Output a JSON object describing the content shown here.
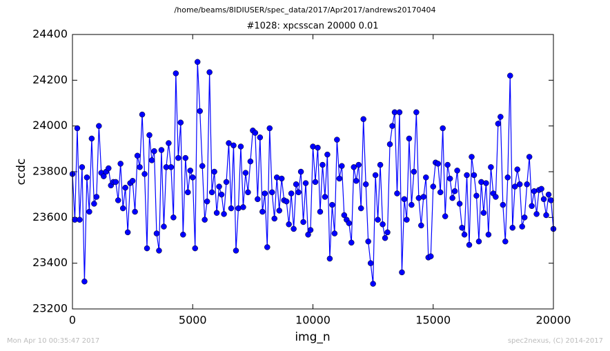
{
  "chart_data": {
    "type": "line",
    "header": "/home/beams/8IDIUSER/spec_data/2017/Apr2017/andrews20170404",
    "title": "#1028: xpcsscan 20000 0.01",
    "xlabel": "img_n",
    "ylabel": "ccdc",
    "footer_left": "Mon Apr 10 00:35:47 2017",
    "footer_right": "spec2nexus, (C) 2014-2017",
    "color": "#0000ff",
    "xlim": [
      0,
      20000
    ],
    "xticks": [
      0,
      5000,
      10000,
      15000,
      20000
    ],
    "ylim": [
      23200,
      24400
    ],
    "yticks": [
      23200,
      23400,
      23600,
      23800,
      24000,
      24200,
      24400
    ],
    "x": [
      0,
      100,
      200,
      300,
      400,
      500,
      600,
      700,
      800,
      900,
      1000,
      1100,
      1200,
      1300,
      1400,
      1500,
      1600,
      1700,
      1800,
      1900,
      2000,
      2100,
      2200,
      2300,
      2400,
      2500,
      2600,
      2700,
      2800,
      2900,
      3000,
      3100,
      3200,
      3300,
      3400,
      3500,
      3600,
      3700,
      3800,
      3900,
      4000,
      4100,
      4200,
      4300,
      4400,
      4500,
      4600,
      4700,
      4800,
      4900,
      5000,
      5100,
      5200,
      5300,
      5400,
      5500,
      5600,
      5700,
      5800,
      5900,
      6000,
      6100,
      6200,
      6300,
      6400,
      6500,
      6600,
      6700,
      6800,
      6900,
      7000,
      7100,
      7200,
      7300,
      7400,
      7500,
      7600,
      7700,
      7800,
      7900,
      8000,
      8100,
      8200,
      8300,
      8400,
      8500,
      8600,
      8700,
      8800,
      8900,
      9000,
      9100,
      9200,
      9300,
      9400,
      9500,
      9600,
      9700,
      9800,
      9900,
      10000,
      10100,
      10200,
      10300,
      10400,
      10500,
      10600,
      10700,
      10800,
      10900,
      11000,
      11100,
      11200,
      11300,
      11400,
      11500,
      11600,
      11700,
      11800,
      11900,
      12000,
      12100,
      12200,
      12300,
      12400,
      12500,
      12600,
      12700,
      12800,
      12900,
      13000,
      13100,
      13200,
      13300,
      13400,
      13500,
      13600,
      13700,
      13800,
      13900,
      14000,
      14100,
      14200,
      14300,
      14400,
      14500,
      14600,
      14700,
      14800,
      14900,
      15000,
      15100,
      15200,
      15300,
      15400,
      15500,
      15600,
      15700,
      15800,
      15900,
      16000,
      16100,
      16200,
      16300,
      16400,
      16500,
      16600,
      16700,
      16800,
      16900,
      17000,
      17100,
      17200,
      17300,
      17400,
      17500,
      17600,
      17700,
      17800,
      17900,
      18000,
      18100,
      18200,
      18300,
      18400,
      18500,
      18600,
      18700,
      18800,
      18900,
      19000,
      19100,
      19200,
      19300,
      19400,
      19500,
      19600,
      19700,
      19800,
      19900,
      20000
    ],
    "values": [
      23790,
      23590,
      23990,
      23590,
      23820,
      23320,
      23775,
      23625,
      23945,
      23660,
      23690,
      24000,
      23795,
      23780,
      23800,
      23815,
      23740,
      23755,
      23755,
      23675,
      23835,
      23640,
      23730,
      23535,
      23750,
      23760,
      23625,
      23870,
      23820,
      24050,
      23790,
      23465,
      23960,
      23850,
      23890,
      23530,
      23455,
      23895,
      23560,
      23820,
      23925,
      23820,
      23600,
      24230,
      23860,
      24015,
      23525,
      23860,
      23710,
      23805,
      23775,
      23465,
      24280,
      24065,
      23825,
      23590,
      23670,
      24235,
      23710,
      23800,
      23620,
      23735,
      23700,
      23615,
      23755,
      23925,
      23640,
      23915,
      23455,
      23640,
      23910,
      23645,
      23795,
      23710,
      23845,
      23980,
      23970,
      23680,
      23950,
      23625,
      23705,
      23470,
      23990,
      23710,
      23595,
      23775,
      23630,
      23770,
      23675,
      23670,
      23570,
      23705,
      23550,
      23745,
      23710,
      23800,
      23580,
      23750,
      23525,
      23545,
      23910,
      23755,
      23905,
      23625,
      23830,
      23690,
      23875,
      23420,
      23655,
      23530,
      23940,
      23770,
      23825,
      23610,
      23590,
      23575,
      23490,
      23820,
      23760,
      23830,
      23640,
      24030,
      23745,
      23495,
      23400,
      23310,
      23785,
      23590,
      23830,
      23570,
      23510,
      23535,
      23920,
      24000,
      24060,
      23705,
      24060,
      23360,
      23680,
      23590,
      23945,
      23655,
      23800,
      24060,
      23685,
      23565,
      23690,
      23775,
      23425,
      23430,
      23735,
      23840,
      23835,
      23710,
      23990,
      23605,
      23830,
      23770,
      23685,
      23715,
      23805,
      23660,
      23555,
      23525,
      23785,
      23480,
      23865,
      23785,
      23695,
      23495,
      23755,
      23620,
      23750,
      23525,
      23820,
      23705,
      23690,
      24010,
      24040,
      23655,
      23495,
      23775,
      24220,
      23555,
      23735,
      23810,
      23745,
      23560,
      23600,
      23745,
      23865,
      23650,
      23715,
      23615,
      23720,
      23725,
      23680,
      23610,
      23700,
      23675,
      23550
    ]
  }
}
